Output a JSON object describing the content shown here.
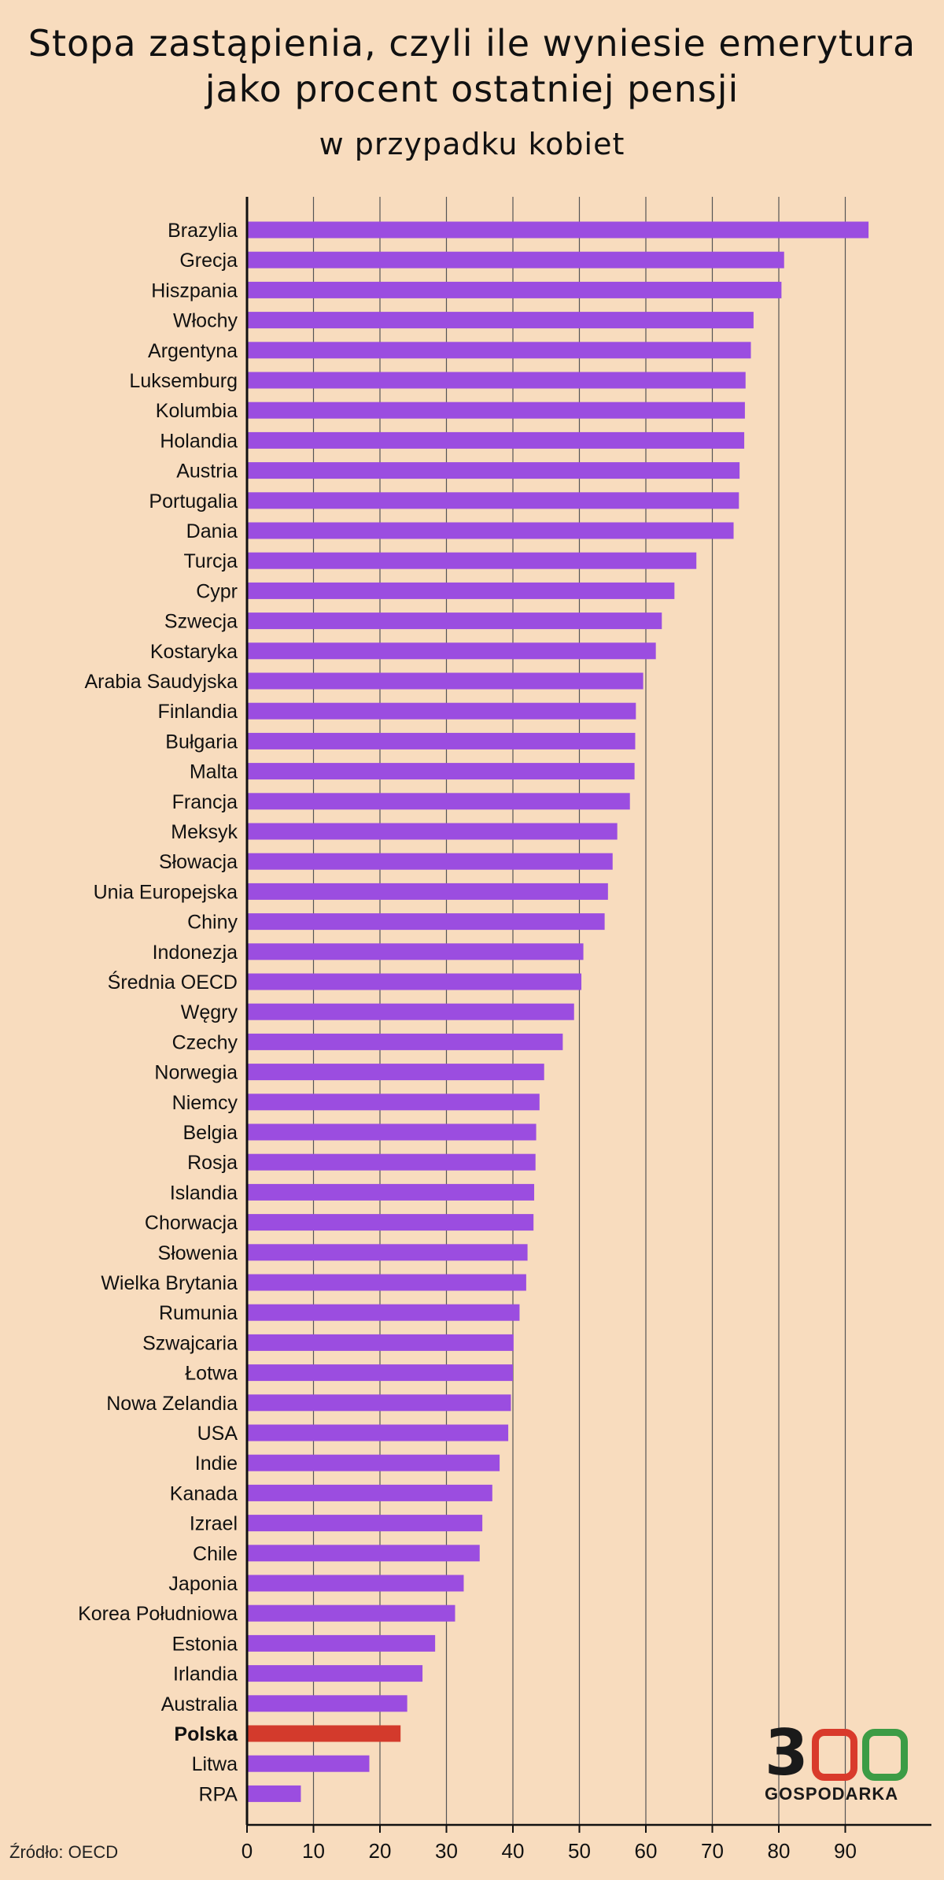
{
  "chart_data": {
    "type": "bar",
    "orientation": "horizontal",
    "title": "Stopa zastąpienia, czyli ile wyniesie emerytura jako procent ostatniej pensji",
    "title_lines": [
      "Stopa zastąpienia, czyli ile wyniesie emerytura",
      "jako procent ostatniej pensji"
    ],
    "subtitle": "w przypadku kobiet",
    "xlim": [
      0,
      100
    ],
    "xticks": [
      0,
      10,
      20,
      30,
      40,
      50,
      60,
      70,
      80,
      90
    ],
    "grid": "vertical",
    "highlight_category": "Polska",
    "colors": {
      "bar": "#9b4de0",
      "highlight": "#d33a2c",
      "background": "#f8dcbe",
      "grid": "#555555"
    },
    "categories": [
      "Brazylia",
      "Grecja",
      "Hiszpania",
      "Włochy",
      "Argentyna",
      "Luksemburg",
      "Kolumbia",
      "Holandia",
      "Austria",
      "Portugalia",
      "Dania",
      "Turcja",
      "Cypr",
      "Szwecja",
      "Kostaryka",
      "Arabia Saudyjska",
      "Finlandia",
      "Bułgaria",
      "Malta",
      "Francja",
      "Meksyk",
      "Słowacja",
      "Unia Europejska",
      "Chiny",
      "Indonezja",
      "Średnia OECD",
      "Węgry",
      "Czechy",
      "Norwegia",
      "Niemcy",
      "Belgia",
      "Rosja",
      "Islandia",
      "Chorwacja",
      "Słowenia",
      "Wielka Brytania",
      "Rumunia",
      "Szwajcaria",
      "Łotwa",
      "Nowa Zelandia",
      "USA",
      "Indie",
      "Kanada",
      "Izrael",
      "Chile",
      "Japonia",
      "Korea Południowa",
      "Estonia",
      "Irlandia",
      "Australia",
      "Polska",
      "Litwa",
      "RPA"
    ],
    "values": [
      93.5,
      80.8,
      80.4,
      76.2,
      75.8,
      75.0,
      74.9,
      74.8,
      74.1,
      74.0,
      73.2,
      67.6,
      64.3,
      62.4,
      61.5,
      59.6,
      58.5,
      58.4,
      58.3,
      57.6,
      55.7,
      55.0,
      54.3,
      53.8,
      50.6,
      50.3,
      49.2,
      47.5,
      44.7,
      44.0,
      43.5,
      43.4,
      43.2,
      43.1,
      42.2,
      42.0,
      41.0,
      40.1,
      40.0,
      39.7,
      39.3,
      38.0,
      36.9,
      35.4,
      35.0,
      32.6,
      31.3,
      28.3,
      26.4,
      24.1,
      23.1,
      18.4,
      8.1
    ]
  },
  "source": "Źródło: OECD",
  "logo": {
    "digit": "3",
    "word": "GOSPODARKA",
    "colors": {
      "dark": "#1a1a1a",
      "red": "#d93a2b",
      "green": "#3c9c45"
    }
  }
}
